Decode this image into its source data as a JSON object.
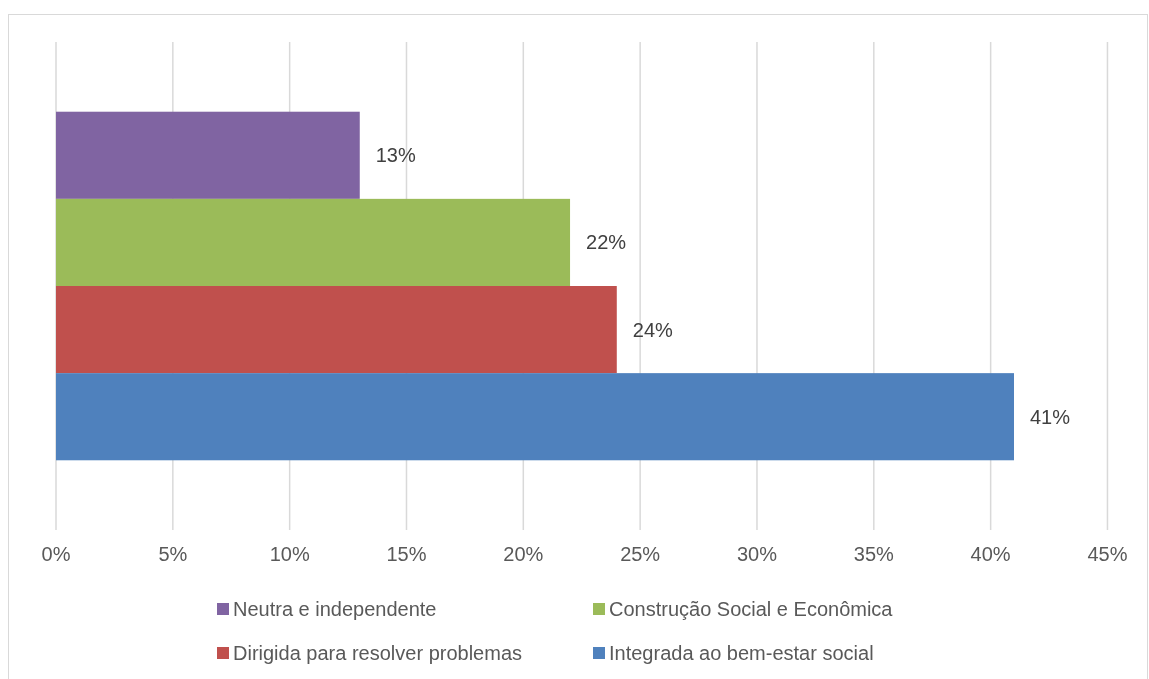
{
  "chart_data": {
    "type": "bar",
    "orientation": "horizontal",
    "categories": [
      null
    ],
    "series": [
      {
        "name": "Neutra e independente",
        "color": "#8064a2",
        "values": [
          13
        ],
        "value_labels": [
          "13%"
        ]
      },
      {
        "name": "Construção Social e Econômica",
        "color": "#9bbb59",
        "values": [
          22
        ],
        "value_labels": [
          "22%"
        ]
      },
      {
        "name": "Dirigida para resolver problemas",
        "color": "#c0504d",
        "values": [
          24
        ],
        "value_labels": [
          "24%"
        ]
      },
      {
        "name": "Integrada ao bem-estar social",
        "color": "#4f81bd",
        "values": [
          41
        ],
        "value_labels": [
          "41%"
        ]
      }
    ],
    "xlim": [
      0,
      45
    ],
    "xticks": [
      {
        "value": 0,
        "label": "0%"
      },
      {
        "value": 5,
        "label": "5%"
      },
      {
        "value": 10,
        "label": "10%"
      },
      {
        "value": 15,
        "label": "15%"
      },
      {
        "value": 20,
        "label": "20%"
      },
      {
        "value": 25,
        "label": "25%"
      },
      {
        "value": 30,
        "label": "30%"
      },
      {
        "value": 35,
        "label": "35%"
      },
      {
        "value": 40,
        "label": "40%"
      },
      {
        "value": 45,
        "label": "45%"
      }
    ],
    "grid": "x",
    "legend": "bottom"
  }
}
